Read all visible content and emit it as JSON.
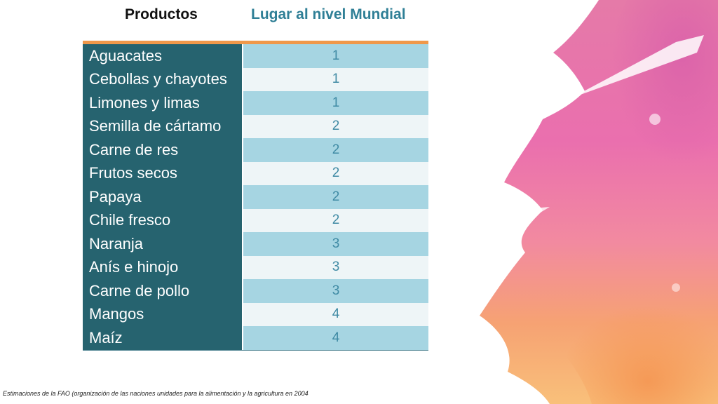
{
  "header": {
    "products_label": "Productos",
    "rank_label": "Lugar al nivel Mundial"
  },
  "table": {
    "rows": [
      {
        "product": "Aguacates",
        "rank": "1"
      },
      {
        "product": "Cebollas y chayotes",
        "rank": "1"
      },
      {
        "product": "Limones y limas",
        "rank": "1"
      },
      {
        "product": "Semilla de cártamo",
        "rank": "2"
      },
      {
        "product": "Carne de res",
        "rank": "2"
      },
      {
        "product": "Frutos secos",
        "rank": "2"
      },
      {
        "product": "Papaya",
        "rank": "2"
      },
      {
        "product": "Chile fresco",
        "rank": "2"
      },
      {
        "product": "Naranja",
        "rank": "3"
      },
      {
        "product": "Anís e hinojo",
        "rank": "3"
      },
      {
        "product": "Carne de pollo",
        "rank": "3"
      },
      {
        "product": "Mangos",
        "rank": "4"
      },
      {
        "product": "Maíz",
        "rank": "4"
      }
    ]
  },
  "footnote": "Estimaciones de la FAO (organización de las naciones unidades para la alimentación y la agricultura en 2004",
  "colors": {
    "name_column": "#26636f",
    "rank_header": "#2f7f96",
    "orange_rule": "#f0984a",
    "row_light_blue": "#a6d5e2",
    "row_pale": "#eef5f7"
  }
}
